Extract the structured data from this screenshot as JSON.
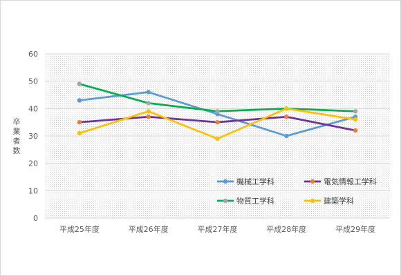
{
  "chart_data": {
    "type": "line",
    "title": "",
    "xlabel": "",
    "ylabel": "卒業者数",
    "ylim": [
      0,
      60
    ],
    "yticks": [
      0,
      10,
      20,
      30,
      40,
      50,
      60
    ],
    "grid": true,
    "legend_position": "lower-right inside plot",
    "categories": [
      "平成25年度",
      "平成26年度",
      "平成27年度",
      "平成28年度",
      "平成29年度"
    ],
    "series": [
      {
        "name": "機械工学科",
        "color": "#5B9BD5",
        "marker_color": "#5B9BD5",
        "values": [
          43,
          46,
          38,
          30,
          37
        ]
      },
      {
        "name": "電気情報工学科",
        "color": "#7030A0",
        "marker_color": "#ED7D31",
        "values": [
          35,
          37,
          35,
          37,
          32
        ]
      },
      {
        "name": "物質工学科",
        "color": "#00B050",
        "marker_color": "#A5A5A5",
        "values": [
          49,
          42,
          39,
          40,
          39
        ]
      },
      {
        "name": "建築学科",
        "color": "#FFC000",
        "marker_color": "#FFC000",
        "values": [
          31,
          39,
          29,
          40,
          36
        ]
      }
    ]
  }
}
